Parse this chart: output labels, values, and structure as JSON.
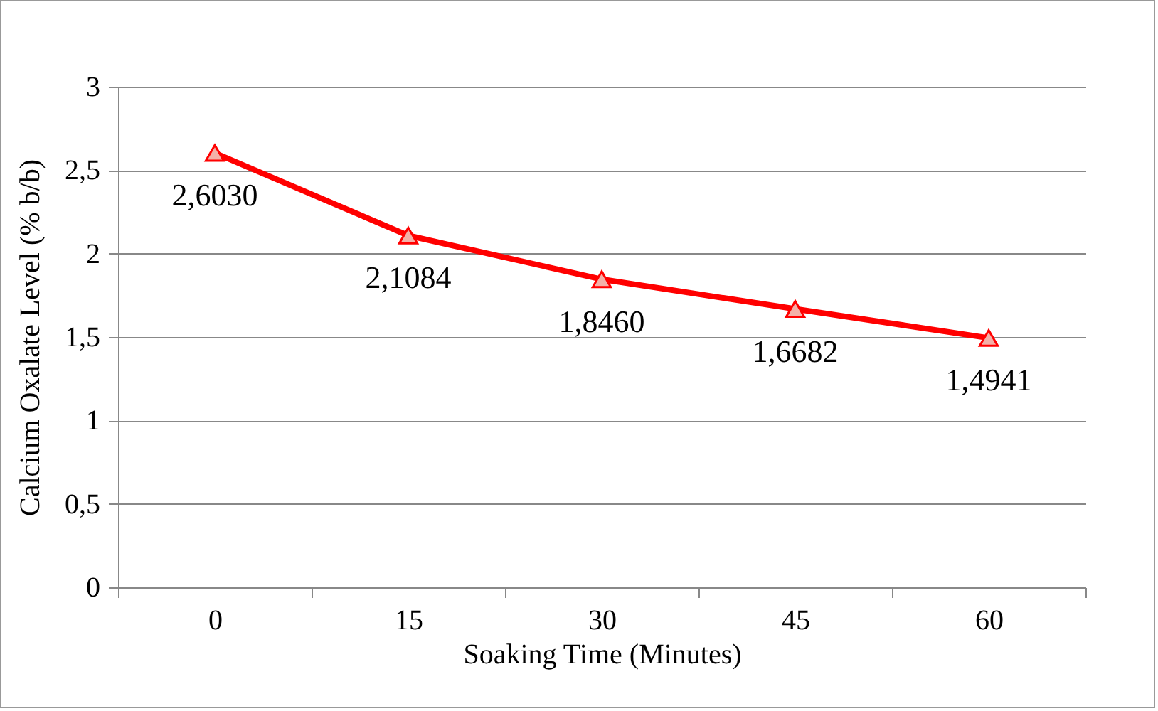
{
  "chart_data": {
    "type": "line",
    "xlabel": "Soaking Time (Minutes)",
    "ylabel": "Calcium Oxalate Level (% b/b)",
    "categories": [
      "0",
      "15",
      "30",
      "45",
      "60"
    ],
    "series": [
      {
        "color": "#ff0000",
        "values": [
          2.603,
          2.1084,
          1.846,
          1.6682,
          1.4941
        ],
        "value_labels": [
          "2,6030",
          "2,1084",
          "1,8460",
          "1,6682",
          "1,4941"
        ]
      }
    ],
    "ylim": [
      0,
      3
    ],
    "yticks": [
      0,
      {
        "value": 0.5,
        "label": "0,5"
      },
      1,
      {
        "value": 1.5,
        "label": "1,5"
      },
      2,
      {
        "value": 2.5,
        "label": "2,5"
      },
      3
    ],
    "grid": "y",
    "marker": "triangle",
    "line_style": "solid"
  }
}
